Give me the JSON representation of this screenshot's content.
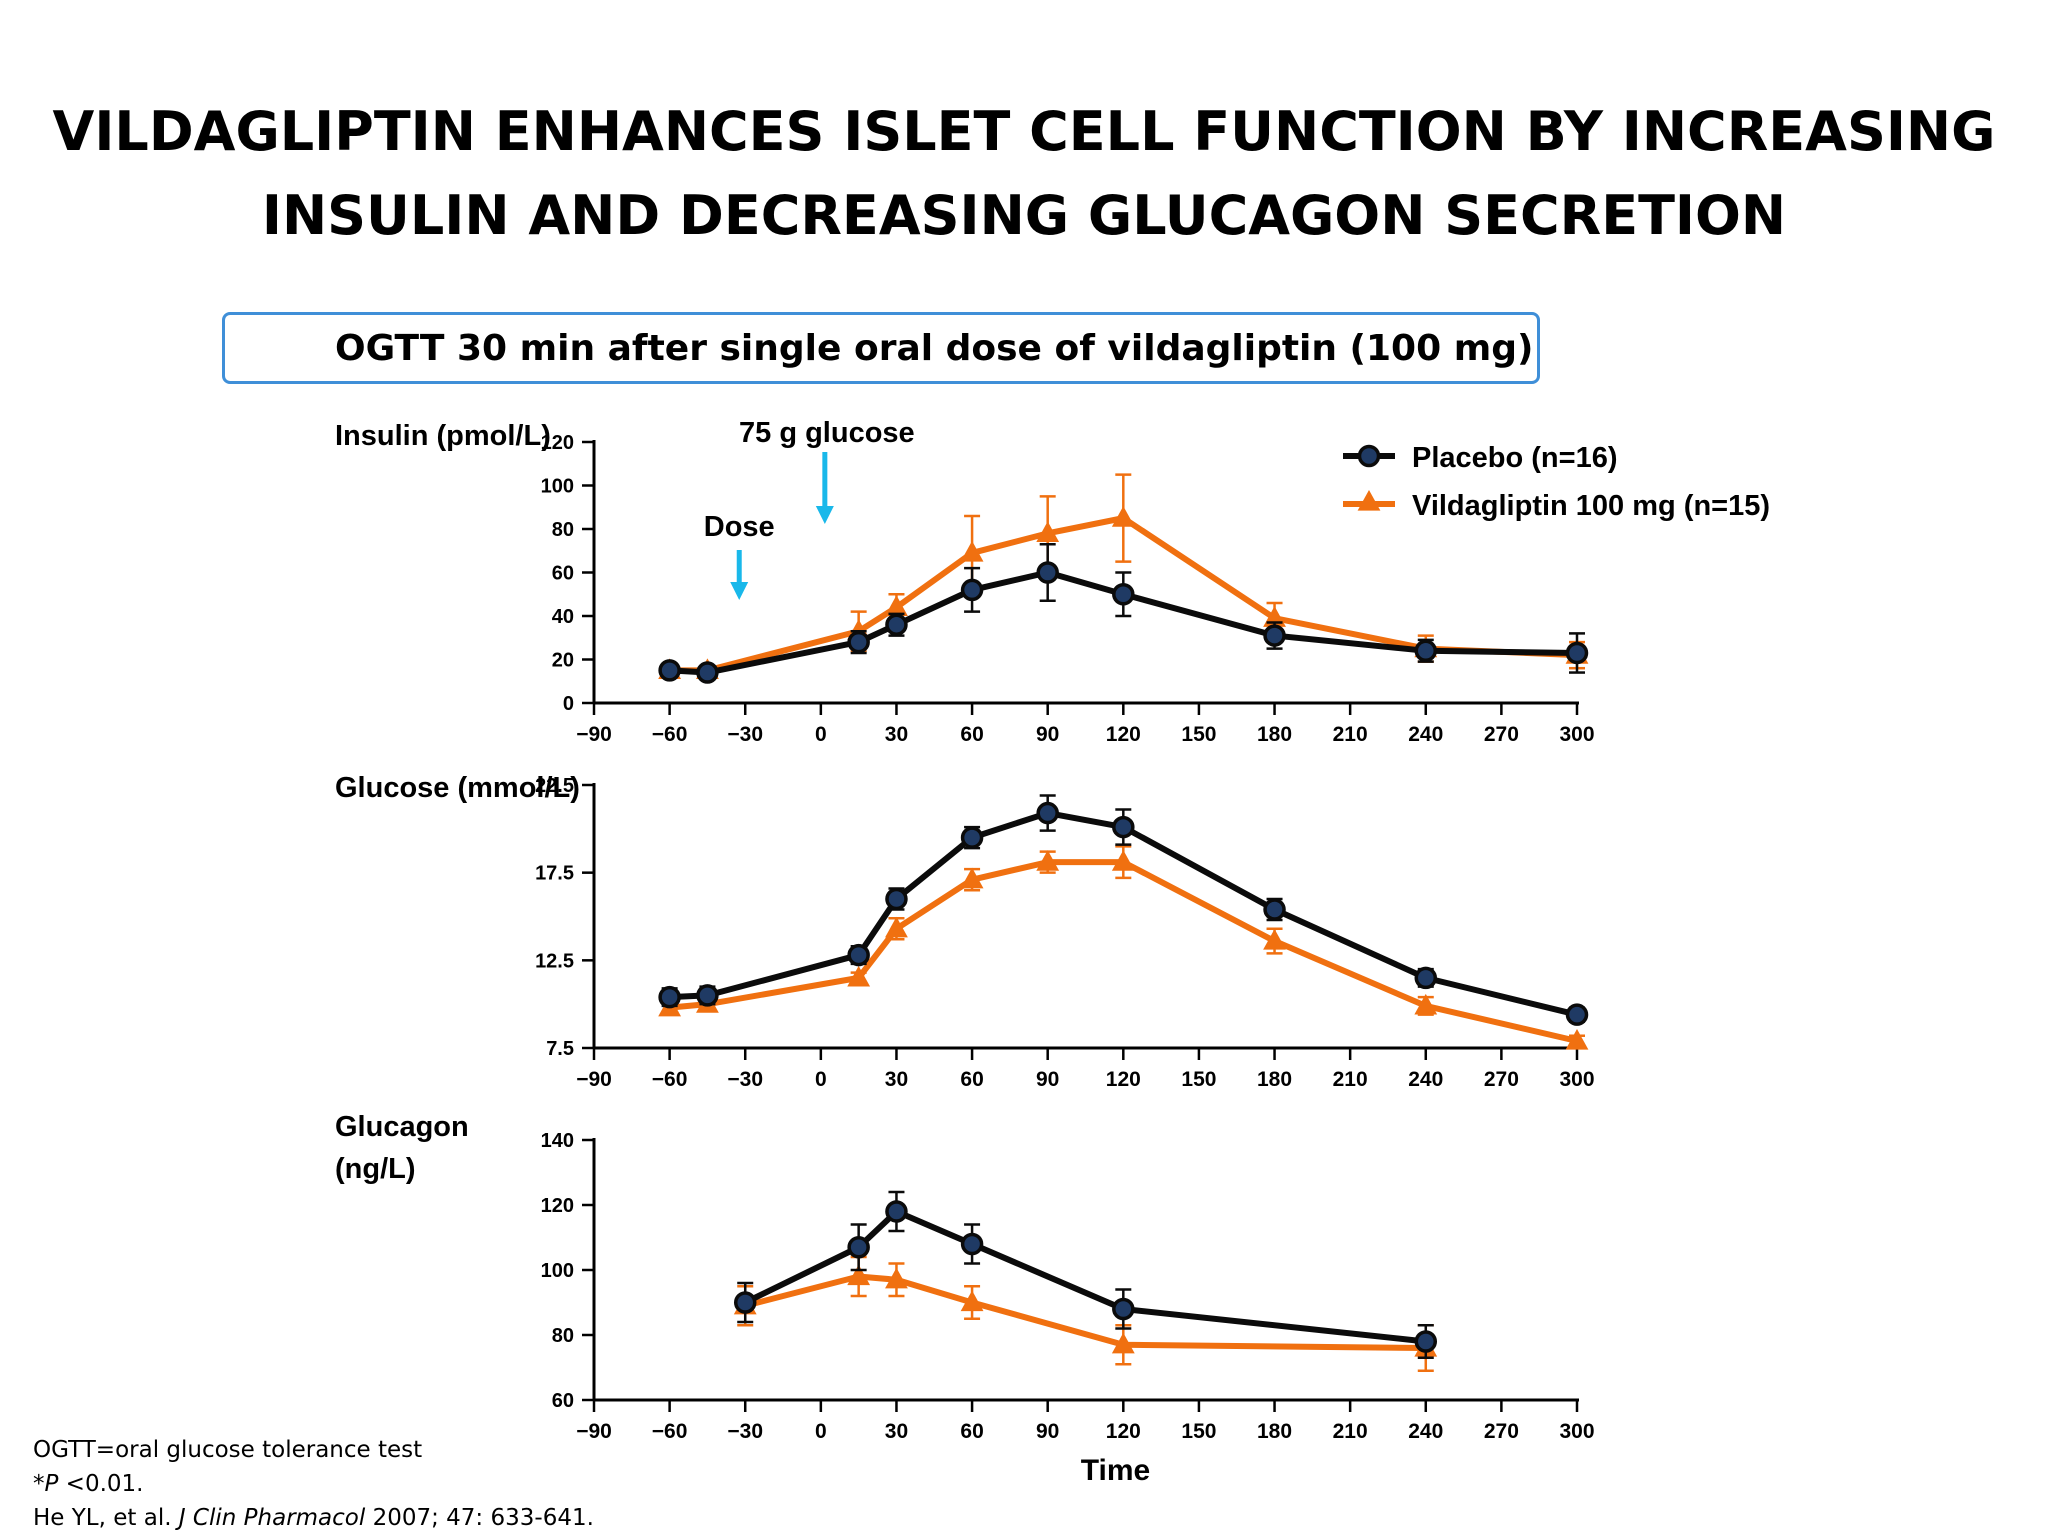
{
  "slide": {
    "title_line1": "VILDAGLIPTIN ENHANCES ISLET CELL FUNCTION BY INCREASING",
    "title_line2": "INSULIN AND DECREASING GLUCAGON SECRETION",
    "subtitle": "OGTT 30 min after single oral dose of vildagliptin (100 mg)"
  },
  "footnotes": {
    "ogtt": "OGTT=oral glucose tolerance test",
    "p_star": "*",
    "p_italic": "P",
    "p_value": " <0.01.",
    "ref_authors": "He YL, et al. ",
    "ref_journal": "J Clin Pharmacol",
    "ref_rest": " 2007; 47: 633-641."
  },
  "colors": {
    "placebo_line": "#0b0b0b",
    "placebo_marker": "#1f3a64",
    "vildagliptin": "#f07010",
    "arrow": "#19b8ea"
  },
  "legend": {
    "placebo": "Placebo (n=16)",
    "vildagliptin": "Vildagliptin 100 mg (n=15)"
  },
  "annotations": {
    "dose": "Dose",
    "glucose": "75 g glucose",
    "dose_x": -30,
    "glucose_x": 0
  },
  "chart_data": [
    {
      "type": "line",
      "ylabel": "Insulin (pmol/L)",
      "xlim": [
        -90,
        300
      ],
      "ylim": [
        0,
        120
      ],
      "x_ticks": [
        -90,
        -60,
        -30,
        0,
        30,
        60,
        90,
        120,
        150,
        180,
        210,
        240,
        270,
        300
      ],
      "y_ticks": [
        "0",
        "20",
        "40",
        "60",
        "80",
        "100",
        "120"
      ],
      "series": [
        {
          "name": "Placebo (n=16)",
          "marker": "circle",
          "x": [
            -60,
            -45,
            15,
            30,
            60,
            90,
            120,
            180,
            240,
            300
          ],
          "y": [
            15,
            14,
            28,
            36,
            52,
            60,
            50,
            31,
            24,
            23
          ],
          "err": [
            0,
            0,
            5,
            5,
            10,
            13,
            10,
            6,
            5,
            9
          ]
        },
        {
          "name": "Vildagliptin 100 mg (n=15)",
          "marker": "triangle",
          "x": [
            -60,
            -45,
            15,
            30,
            60,
            90,
            120,
            180,
            240,
            300
          ],
          "y": [
            15,
            15,
            33,
            44,
            69,
            78,
            85,
            39,
            25,
            22
          ],
          "err": [
            0,
            0,
            9,
            6,
            17,
            17,
            20,
            7,
            6,
            6
          ]
        }
      ]
    },
    {
      "type": "line",
      "ylabel": "Glucose (mmol/L)",
      "xlim": [
        -90,
        300
      ],
      "ylim": [
        7.5,
        22.5
      ],
      "x_ticks": [
        -90,
        -60,
        -30,
        0,
        30,
        60,
        90,
        120,
        150,
        180,
        210,
        240,
        270,
        300
      ],
      "y_ticks": [
        "7.5",
        "12.5",
        "17.5",
        "22.5"
      ],
      "series": [
        {
          "name": "Placebo (n=16)",
          "marker": "circle",
          "x": [
            -60,
            -45,
            15,
            30,
            60,
            90,
            120,
            180,
            240,
            300
          ],
          "y": [
            10.4,
            10.5,
            12.8,
            16.0,
            19.5,
            20.9,
            20.1,
            15.4,
            11.5,
            9.4
          ],
          "err": [
            0.5,
            0.5,
            0.5,
            0.6,
            0.6,
            1.0,
            1.0,
            0.6,
            0.5,
            0.4
          ]
        },
        {
          "name": "Vildagliptin 100 mg (n=15)",
          "marker": "triangle",
          "x": [
            -60,
            -45,
            15,
            30,
            60,
            90,
            120,
            180,
            240,
            300
          ],
          "y": [
            9.8,
            10.0,
            11.5,
            14.3,
            17.1,
            18.1,
            18.1,
            13.6,
            9.9,
            7.9
          ],
          "err": [
            0.3,
            0.3,
            0.3,
            0.6,
            0.6,
            0.6,
            0.9,
            0.7,
            0.5,
            0.3
          ]
        }
      ]
    },
    {
      "type": "line",
      "ylabel": "Glucagon (ng/L)",
      "xlabel": "Time",
      "xlim": [
        -90,
        300
      ],
      "ylim": [
        60,
        140
      ],
      "x_ticks": [
        -90,
        -60,
        -30,
        0,
        30,
        60,
        90,
        120,
        150,
        180,
        210,
        240,
        270,
        300
      ],
      "y_ticks": [
        "60",
        "80",
        "100",
        "120",
        "140"
      ],
      "series": [
        {
          "name": "Placebo (n=16)",
          "marker": "circle",
          "x": [
            -30,
            15,
            30,
            60,
            120,
            240
          ],
          "y": [
            90,
            107,
            118,
            108,
            88,
            78
          ],
          "err": [
            6,
            7,
            6,
            6,
            6,
            5
          ]
        },
        {
          "name": "Vildagliptin 100 mg (n=15)",
          "marker": "triangle",
          "x": [
            -30,
            15,
            30,
            60,
            120,
            240
          ],
          "y": [
            89,
            98,
            97,
            90,
            77,
            76
          ],
          "err": [
            6,
            6,
            5,
            5,
            6,
            7
          ]
        }
      ]
    }
  ]
}
